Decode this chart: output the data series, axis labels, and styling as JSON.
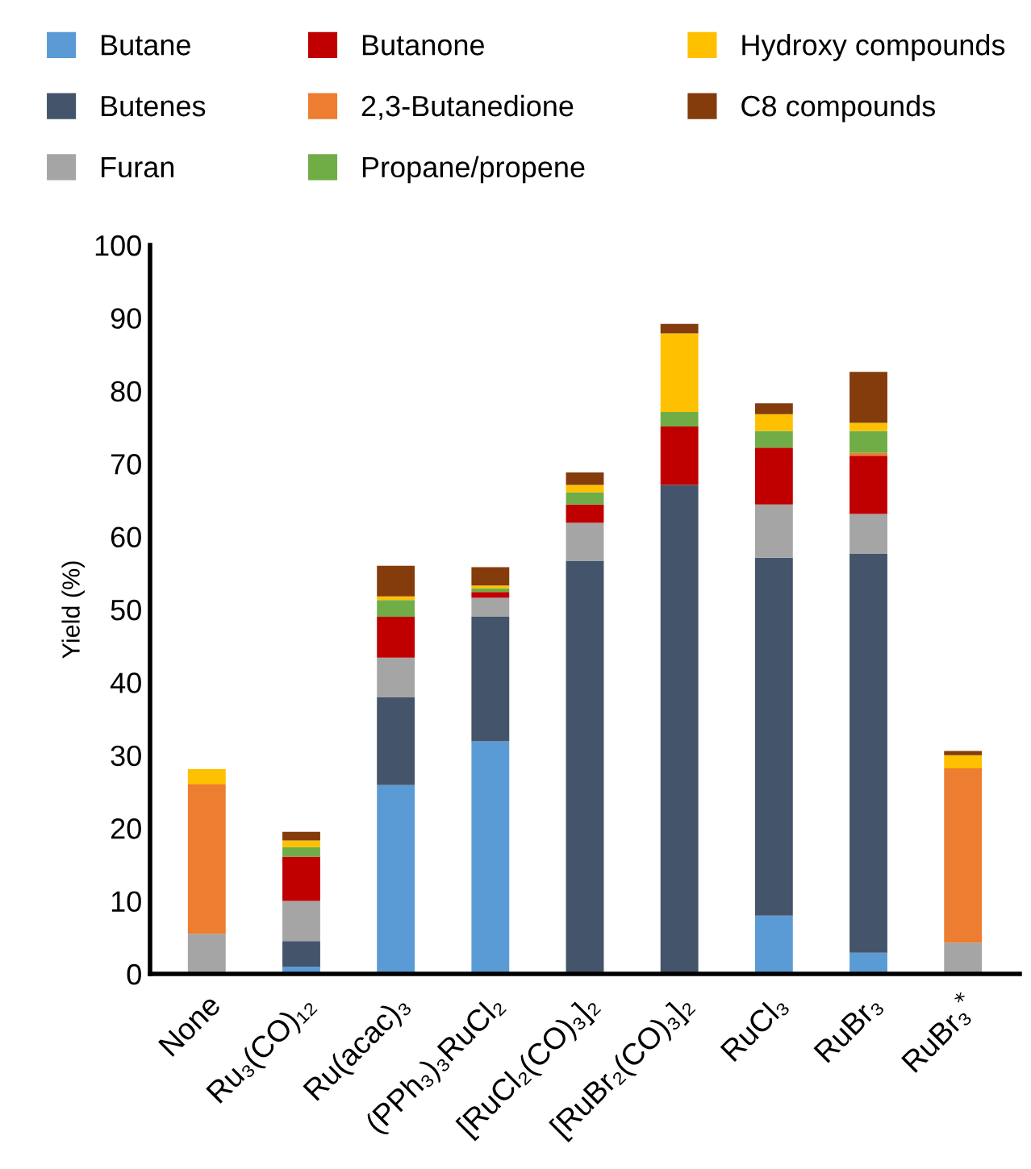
{
  "chart_data": {
    "type": "bar",
    "stacked": true,
    "ylabel": "Yield (%)",
    "ylim": [
      0,
      100
    ],
    "yticks": [
      0,
      10,
      20,
      30,
      40,
      50,
      60,
      70,
      80,
      90,
      100
    ],
    "grid": false,
    "legend": "top",
    "categories": [
      "None",
      "Ru₃(CO)₁₂",
      "Ru(acac)₃",
      "(PPh₃)₃RuCl₂",
      "[RuCl₂(CO)₃]₂",
      "[RuBr₂(CO)₃]₂",
      "RuCl₃",
      "RuBr₃",
      "RuBr₃$^{*}$"
    ],
    "series": [
      {
        "name": "Butane",
        "color": "#5b9bd5",
        "values": [
          0,
          1.0,
          25.9,
          31.9,
          0,
          0,
          8.0,
          2.9,
          0
        ]
      },
      {
        "name": "Butenes",
        "color": "#44546a",
        "values": [
          0,
          3.5,
          12.1,
          17.1,
          56.7,
          67.1,
          49.1,
          54.8,
          0
        ]
      },
      {
        "name": "Furan",
        "color": "#a5a5a5",
        "values": [
          5.5,
          5.5,
          5.4,
          2.6,
          5.2,
          0,
          7.3,
          5.4,
          4.3
        ]
      },
      {
        "name": "Butanone",
        "color": "#c00000",
        "values": [
          0,
          6.1,
          5.6,
          0.8,
          2.5,
          8.0,
          7.8,
          8.0,
          0
        ]
      },
      {
        "name": "2,3-Butanedione",
        "color": "#ed7d31",
        "values": [
          20.5,
          0,
          0,
          0,
          0,
          0,
          0,
          0.4,
          23.9
        ]
      },
      {
        "name": "Propane/propene",
        "color": "#70ad47",
        "values": [
          0,
          1.3,
          2.3,
          0.5,
          1.7,
          2.0,
          2.3,
          3.0,
          0
        ]
      },
      {
        "name": "Hydroxy compounds",
        "color": "#ffc000",
        "values": [
          2.1,
          0.9,
          0.5,
          0.4,
          1.0,
          10.8,
          2.3,
          1.1,
          1.8
        ]
      },
      {
        "name": "C8 compounds",
        "color": "#843c0c",
        "values": [
          0,
          1.2,
          4.2,
          2.5,
          1.7,
          1.3,
          1.5,
          7.0,
          0.6
        ]
      }
    ]
  }
}
